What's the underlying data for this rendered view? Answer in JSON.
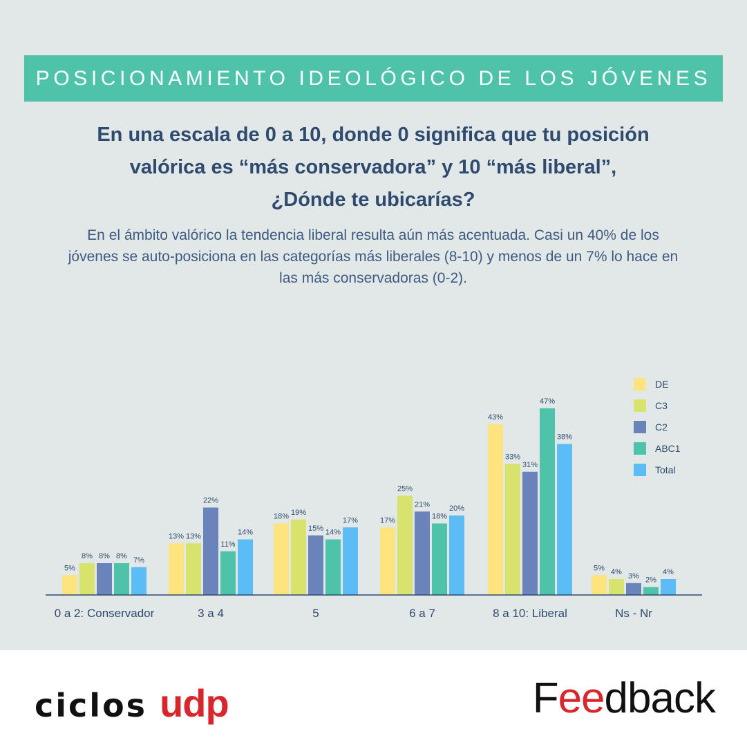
{
  "header": {
    "title": "POSICIONAMIENTO IDEOLÓGICO DE LOS JÓVENES",
    "question": "En una escala de 0 a 10, donde 0 significa que tu posición valórica es “más conservadora” y 10 “más liberal”, ¿Dónde te ubicarías?",
    "description": "En el ámbito valórico la tendencia liberal resulta aún más acentuada. Casi un 40% de los jóvenes se auto-posiciona en las categorías más liberales (8-10) y menos de un 7% lo hace en las más conservadoras (0-2)."
  },
  "colors": {
    "DE": "#fde47f",
    "C3": "#d7e36c",
    "C2": "#6a83bb",
    "ABC1": "#4ec3a9",
    "Total": "#5bbcf6",
    "banner": "#4ec3a9",
    "text_dark": "#2e4a6e",
    "axis": "#2e4a6e"
  },
  "chart_data": {
    "type": "bar",
    "categories": [
      "0 a 2: Conservador",
      "3 a 4",
      "5",
      "6 a 7",
      "8 a 10: Liberal",
      "Ns - Nr"
    ],
    "series": [
      {
        "name": "DE",
        "values": [
          5,
          13,
          18,
          17,
          43,
          5
        ]
      },
      {
        "name": "C3",
        "values": [
          8,
          13,
          19,
          25,
          33,
          4
        ]
      },
      {
        "name": "C2",
        "values": [
          8,
          22,
          15,
          21,
          31,
          3
        ]
      },
      {
        "name": "ABC1",
        "values": [
          8,
          11,
          14,
          18,
          47,
          2
        ]
      },
      {
        "name": "Total",
        "values": [
          7,
          14,
          17,
          20,
          38,
          4
        ]
      }
    ],
    "value_suffix": "%",
    "legend_position": "top-right",
    "grid": false
  },
  "footer": {
    "logo_left_a": "ciclos",
    "logo_left_b": "udp",
    "logo_right_a": "F",
    "logo_right_b": "ee",
    "logo_right_c": "dback"
  }
}
